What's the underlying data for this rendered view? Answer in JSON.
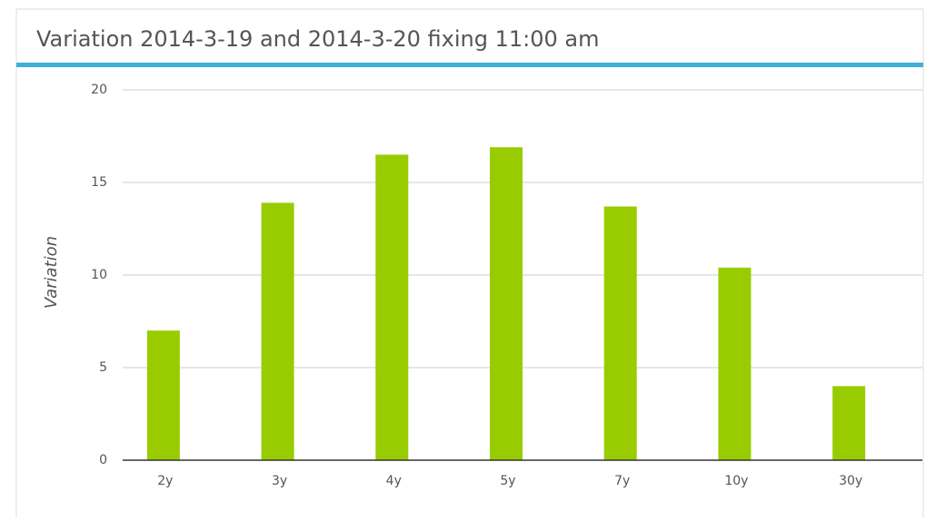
{
  "chart_data": {
    "type": "bar",
    "title": "Variation 2014-3-19 and 2014-3-20 fixing 11:00 am",
    "y_label": "Variation",
    "categories": [
      "2y",
      "3y",
      "4y",
      "5y",
      "7y",
      "10y",
      "30y"
    ],
    "values": [
      7.0,
      13.9,
      16.5,
      16.9,
      13.7,
      10.4,
      4.0
    ],
    "color": "#99cc00",
    "ylim": [
      0,
      20
    ],
    "yticks": [
      0,
      5,
      10,
      15,
      20
    ],
    "grid": true
  }
}
